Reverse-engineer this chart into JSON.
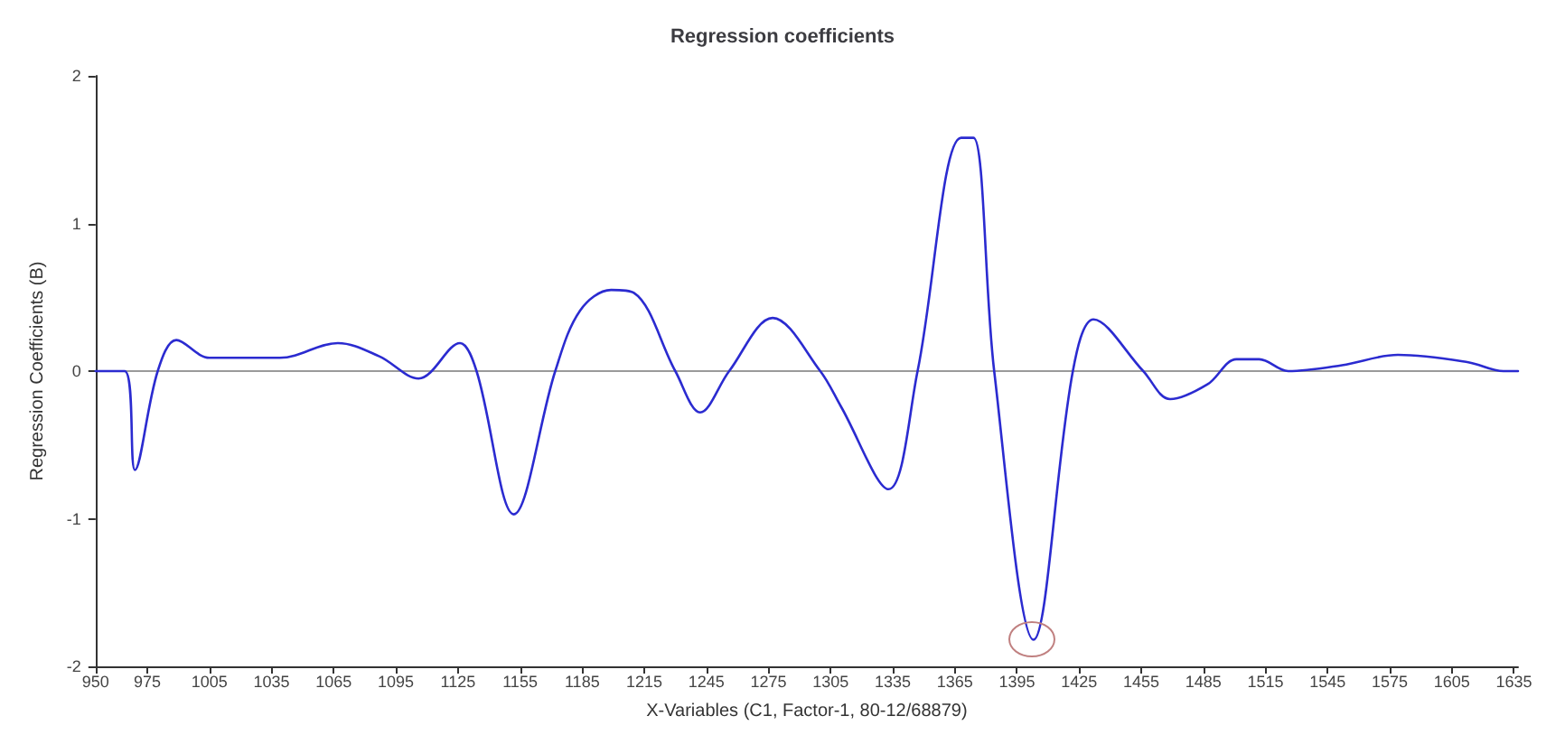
{
  "chart_data": {
    "type": "line",
    "title": "Regression coefficients",
    "xlabel": "X-Variables (C1, Factor-1, 80-12/68879)",
    "ylabel": "Regression Coefficients (B)",
    "x": [
      950,
      964,
      969,
      980,
      989,
      1005,
      1039,
      1067,
      1087,
      1106,
      1126,
      1134,
      1152,
      1172,
      1184,
      1199,
      1210,
      1230,
      1242,
      1256,
      1277,
      1300,
      1310,
      1333,
      1347,
      1368,
      1374,
      1384,
      1403,
      1422,
      1432,
      1456,
      1469,
      1487,
      1501,
      1512,
      1526,
      1552,
      1579,
      1613,
      1630,
      1637
    ],
    "series": [
      {
        "color": "#2b2bd0",
        "values": [
          0,
          0,
          -0.67,
          0,
          0.21,
          0.09,
          0.09,
          0.19,
          0.1,
          -0.05,
          0.19,
          0,
          -0.97,
          0,
          0.41,
          0.55,
          0.53,
          0,
          -0.28,
          0,
          0.36,
          0,
          -0.24,
          -0.8,
          0,
          1.58,
          1.58,
          0,
          -1.82,
          0,
          0.35,
          0,
          -0.19,
          -0.09,
          0.08,
          0.08,
          0,
          0.04,
          0.11,
          0.06,
          0,
          0
        ]
      }
    ],
    "xlim": [
      950,
      1637
    ],
    "xticks": [
      950,
      975,
      1005,
      1035,
      1065,
      1095,
      1125,
      1155,
      1185,
      1215,
      1245,
      1275,
      1305,
      1335,
      1365,
      1395,
      1425,
      1455,
      1485,
      1515,
      1545,
      1575,
      1605,
      1635
    ],
    "ylim": [
      -2,
      2
    ],
    "yticks": [
      -2,
      -1,
      0,
      1,
      2
    ],
    "ref_lines": [
      {
        "axis": "y",
        "value": 0,
        "color": "#9a9a9a"
      }
    ],
    "grid": false,
    "marker": "none",
    "line_style": "solid"
  }
}
